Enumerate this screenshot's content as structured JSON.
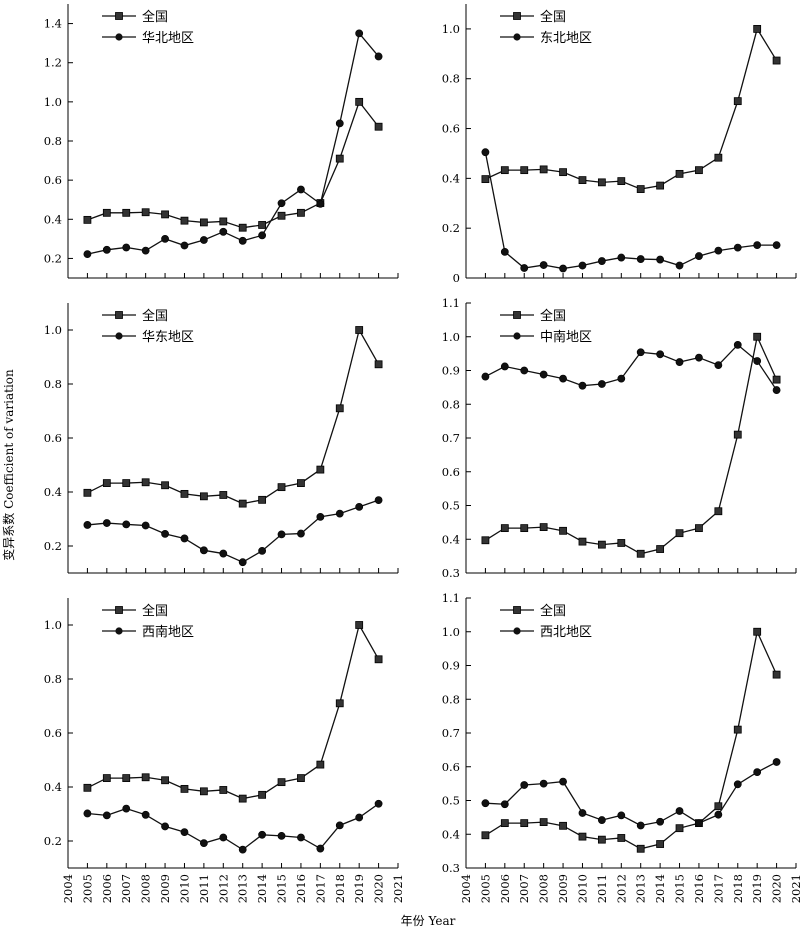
{
  "ylabel": "变异系数 Coefficient of variation",
  "xlabel": "年份 Year",
  "chart_data": [
    {
      "type": "line",
      "x": [
        2005,
        2006,
        2007,
        2008,
        2009,
        2010,
        2011,
        2012,
        2013,
        2014,
        2015,
        2016,
        2017,
        2018,
        2019,
        2020
      ],
      "xlim": [
        2004,
        2021
      ],
      "ylim": [
        0.1,
        1.5
      ],
      "yticks": [
        0.2,
        0.4,
        0.6,
        0.8,
        1.0,
        1.2,
        1.4
      ],
      "yfmt": 1,
      "series": [
        {
          "name": "全国",
          "marker": "square",
          "values": [
            0.397,
            0.433,
            0.433,
            0.436,
            0.425,
            0.393,
            0.384,
            0.389,
            0.357,
            0.371,
            0.418,
            0.433,
            0.483,
            0.71,
            1.0,
            0.873
          ]
        },
        {
          "name": "华北地区",
          "marker": "circle",
          "values": [
            0.222,
            0.244,
            0.256,
            0.24,
            0.3,
            0.266,
            0.294,
            0.336,
            0.29,
            0.318,
            0.482,
            0.552,
            0.479,
            0.89,
            1.35,
            1.232
          ]
        }
      ]
    },
    {
      "type": "line",
      "x": [
        2005,
        2006,
        2007,
        2008,
        2009,
        2010,
        2011,
        2012,
        2013,
        2014,
        2015,
        2016,
        2017,
        2018,
        2019,
        2020
      ],
      "xlim": [
        2004,
        2021
      ],
      "ylim": [
        0,
        1.1
      ],
      "yticks": [
        0,
        0.2,
        0.4,
        0.6,
        0.8,
        1.0
      ],
      "yfmt": 1,
      "series": [
        {
          "name": "全国",
          "marker": "square",
          "values": [
            0.397,
            0.433,
            0.433,
            0.436,
            0.425,
            0.393,
            0.384,
            0.389,
            0.357,
            0.371,
            0.418,
            0.433,
            0.483,
            0.71,
            1.0,
            0.873
          ]
        },
        {
          "name": "东北地区",
          "marker": "circle",
          "values": [
            0.505,
            0.105,
            0.04,
            0.052,
            0.038,
            0.05,
            0.068,
            0.082,
            0.076,
            0.074,
            0.05,
            0.088,
            0.11,
            0.122,
            0.132,
            0.132
          ]
        }
      ]
    },
    {
      "type": "line",
      "x": [
        2005,
        2006,
        2007,
        2008,
        2009,
        2010,
        2011,
        2012,
        2013,
        2014,
        2015,
        2016,
        2017,
        2018,
        2019,
        2020
      ],
      "xlim": [
        2004,
        2021
      ],
      "ylim": [
        0.1,
        1.1
      ],
      "yticks": [
        0.2,
        0.4,
        0.6,
        0.8,
        1.0
      ],
      "yfmt": 1,
      "series": [
        {
          "name": "全国",
          "marker": "square",
          "values": [
            0.397,
            0.433,
            0.433,
            0.436,
            0.425,
            0.393,
            0.384,
            0.389,
            0.357,
            0.371,
            0.418,
            0.433,
            0.483,
            0.71,
            1.0,
            0.873
          ]
        },
        {
          "name": "华东地区",
          "marker": "circle",
          "values": [
            0.278,
            0.285,
            0.28,
            0.276,
            0.245,
            0.228,
            0.184,
            0.172,
            0.14,
            0.182,
            0.243,
            0.246,
            0.308,
            0.32,
            0.345,
            0.37
          ]
        }
      ]
    },
    {
      "type": "line",
      "x": [
        2005,
        2006,
        2007,
        2008,
        2009,
        2010,
        2011,
        2012,
        2013,
        2014,
        2015,
        2016,
        2017,
        2018,
        2019,
        2020
      ],
      "xlim": [
        2004,
        2021
      ],
      "ylim": [
        0.3,
        1.1
      ],
      "yticks": [
        0.3,
        0.4,
        0.5,
        0.6,
        0.7,
        0.8,
        0.9,
        1.0,
        1.1
      ],
      "yfmt": 1,
      "series": [
        {
          "name": "全国",
          "marker": "square",
          "values": [
            0.397,
            0.433,
            0.433,
            0.436,
            0.425,
            0.393,
            0.384,
            0.389,
            0.357,
            0.371,
            0.418,
            0.433,
            0.483,
            0.71,
            1.0,
            0.873
          ]
        },
        {
          "name": "中南地区",
          "marker": "circle",
          "values": [
            0.882,
            0.912,
            0.9,
            0.888,
            0.876,
            0.855,
            0.86,
            0.876,
            0.954,
            0.948,
            0.925,
            0.938,
            0.916,
            0.976,
            0.928,
            0.842
          ]
        }
      ]
    },
    {
      "type": "line",
      "x": [
        2005,
        2006,
        2007,
        2008,
        2009,
        2010,
        2011,
        2012,
        2013,
        2014,
        2015,
        2016,
        2017,
        2018,
        2019,
        2020
      ],
      "xlim": [
        2004,
        2021
      ],
      "ylim": [
        0.1,
        1.1
      ],
      "yticks": [
        0.2,
        0.4,
        0.6,
        0.8,
        1.0
      ],
      "yfmt": 1,
      "series": [
        {
          "name": "全国",
          "marker": "square",
          "values": [
            0.397,
            0.433,
            0.433,
            0.436,
            0.425,
            0.393,
            0.384,
            0.389,
            0.357,
            0.371,
            0.418,
            0.433,
            0.483,
            0.71,
            1.0,
            0.873
          ]
        },
        {
          "name": "西南地区",
          "marker": "circle",
          "values": [
            0.302,
            0.295,
            0.32,
            0.297,
            0.254,
            0.233,
            0.192,
            0.213,
            0.168,
            0.223,
            0.219,
            0.213,
            0.172,
            0.258,
            0.287,
            0.338
          ]
        }
      ]
    },
    {
      "type": "line",
      "x": [
        2005,
        2006,
        2007,
        2008,
        2009,
        2010,
        2011,
        2012,
        2013,
        2014,
        2015,
        2016,
        2017,
        2018,
        2019,
        2020
      ],
      "xlim": [
        2004,
        2021
      ],
      "ylim": [
        0.3,
        1.1
      ],
      "yticks": [
        0.3,
        0.4,
        0.5,
        0.6,
        0.7,
        0.8,
        0.9,
        1.0,
        1.1
      ],
      "yfmt": 1,
      "series": [
        {
          "name": "全国",
          "marker": "square",
          "values": [
            0.397,
            0.433,
            0.433,
            0.436,
            0.425,
            0.393,
            0.384,
            0.389,
            0.357,
            0.371,
            0.418,
            0.433,
            0.483,
            0.71,
            1.0,
            0.873
          ]
        },
        {
          "name": "西北地区",
          "marker": "circle",
          "values": [
            0.492,
            0.489,
            0.546,
            0.55,
            0.556,
            0.463,
            0.442,
            0.456,
            0.426,
            0.437,
            0.469,
            0.433,
            0.458,
            0.548,
            0.584,
            0.614
          ]
        }
      ]
    }
  ]
}
